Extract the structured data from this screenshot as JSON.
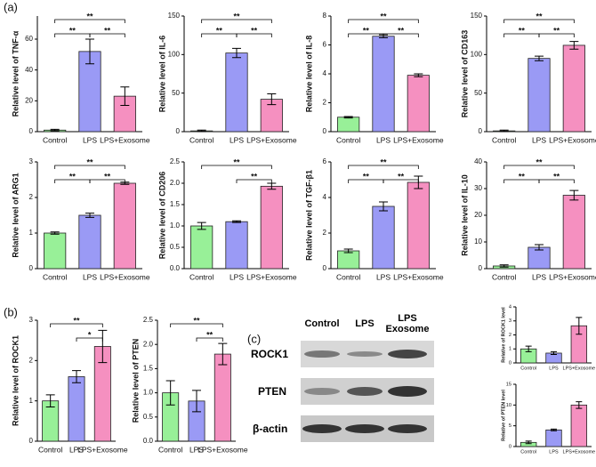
{
  "panel_labels": [
    "(a)",
    "(b)",
    "(c)"
  ],
  "blot": {
    "columns": [
      "Control",
      "LPS",
      "LPS Exosome"
    ],
    "rows": [
      "ROCK1",
      "PTEN",
      "β-actin"
    ]
  },
  "chart_data": [
    {
      "type": "bar",
      "ylabel": "Relative level of TNF-α",
      "categories": [
        "Control",
        "LPS",
        "LPS+Exosome"
      ],
      "values": [
        1,
        52,
        23
      ],
      "errors": [
        0.5,
        8,
        6
      ],
      "colors": [
        "#98f098",
        "#9a9af5",
        "#f590c0"
      ],
      "ylim": [
        0,
        75
      ],
      "yticks": [
        0,
        20,
        40,
        60
      ],
      "significance": [
        {
          "groups": [
            "Control",
            "LPS"
          ],
          "label": "**"
        },
        {
          "groups": [
            "LPS",
            "LPS+Exosome"
          ],
          "label": "**"
        },
        {
          "groups": [
            "Control",
            "LPS+Exosome"
          ],
          "label": "**"
        }
      ]
    },
    {
      "type": "bar",
      "ylabel": "Relative level of IL-6",
      "categories": [
        "Control",
        "LPS",
        "LPS+Exosome"
      ],
      "values": [
        1,
        102,
        42
      ],
      "errors": [
        1,
        6,
        7
      ],
      "colors": [
        "#98f098",
        "#9a9af5",
        "#f590c0"
      ],
      "ylim": [
        0,
        150
      ],
      "yticks": [
        0,
        50,
        100,
        150
      ],
      "significance": [
        {
          "groups": [
            "Control",
            "LPS"
          ],
          "label": "**"
        },
        {
          "groups": [
            "LPS",
            "LPS+Exosome"
          ],
          "label": "**"
        },
        {
          "groups": [
            "Control",
            "LPS+Exosome"
          ],
          "label": "**"
        }
      ]
    },
    {
      "type": "bar",
      "ylabel": "Relative level of IL-8",
      "categories": [
        "Control",
        "LPS",
        "LPS+Exosome"
      ],
      "values": [
        1,
        6.6,
        3.9
      ],
      "errors": [
        0.05,
        0.1,
        0.1
      ],
      "colors": [
        "#98f098",
        "#9a9af5",
        "#f590c0"
      ],
      "ylim": [
        0,
        8
      ],
      "yticks": [
        0,
        2,
        4,
        6,
        8
      ],
      "significance": [
        {
          "groups": [
            "Control",
            "LPS"
          ],
          "label": "**"
        },
        {
          "groups": [
            "LPS",
            "LPS+Exosome"
          ],
          "label": "**"
        },
        {
          "groups": [
            "Control",
            "LPS+Exosome"
          ],
          "label": "**"
        }
      ]
    },
    {
      "type": "bar",
      "ylabel": "Relative level of CD163",
      "categories": [
        "Control",
        "LPS",
        "LPS+Exosome"
      ],
      "values": [
        1,
        95,
        112
      ],
      "errors": [
        1,
        3,
        5
      ],
      "colors": [
        "#98f098",
        "#9a9af5",
        "#f590c0"
      ],
      "ylim": [
        0,
        150
      ],
      "yticks": [
        0,
        50,
        100,
        150
      ],
      "significance": [
        {
          "groups": [
            "Control",
            "LPS"
          ],
          "label": "**"
        },
        {
          "groups": [
            "LPS",
            "LPS+Exosome"
          ],
          "label": "**"
        },
        {
          "groups": [
            "Control",
            "LPS+Exosome"
          ],
          "label": "**"
        }
      ]
    },
    {
      "type": "bar",
      "ylabel": "Relative level of ARG1",
      "categories": [
        "Control",
        "LPS",
        "LPS+Exosome"
      ],
      "values": [
        1.0,
        1.5,
        2.4
      ],
      "errors": [
        0.03,
        0.06,
        0.03
      ],
      "colors": [
        "#98f098",
        "#9a9af5",
        "#f590c0"
      ],
      "ylim": [
        0,
        3
      ],
      "yticks": [
        0,
        1,
        2,
        3
      ],
      "significance": [
        {
          "groups": [
            "Control",
            "LPS"
          ],
          "label": "**"
        },
        {
          "groups": [
            "LPS",
            "LPS+Exosome"
          ],
          "label": "**"
        },
        {
          "groups": [
            "Control",
            "LPS+Exosome"
          ],
          "label": "**"
        }
      ]
    },
    {
      "type": "bar",
      "ylabel": "Relative level of CD206",
      "categories": [
        "Control",
        "LPS",
        "LPS+Exosome"
      ],
      "values": [
        1.0,
        1.1,
        1.93
      ],
      "errors": [
        0.08,
        0.02,
        0.07
      ],
      "colors": [
        "#98f098",
        "#9a9af5",
        "#f590c0"
      ],
      "ylim": [
        0,
        2.5
      ],
      "yticks": [
        {
          "value": 0,
          "label": "0.0"
        },
        0.5,
        {
          "value": 1,
          "label": "1.0"
        },
        1.5,
        {
          "value": 2,
          "label": "2.0"
        },
        2.5
      ],
      "significance": [
        {
          "groups": [
            "LPS",
            "LPS+Exosome"
          ],
          "label": "**"
        },
        {
          "groups": [
            "Control",
            "LPS+Exosome"
          ],
          "label": "**"
        }
      ]
    },
    {
      "type": "bar",
      "ylabel": "Relative level of TGF-β1",
      "categories": [
        "Control",
        "LPS",
        "LPS+Exosome"
      ],
      "values": [
        1,
        3.5,
        4.85
      ],
      "errors": [
        0.1,
        0.25,
        0.35
      ],
      "colors": [
        "#98f098",
        "#9a9af5",
        "#f590c0"
      ],
      "ylim": [
        0,
        6
      ],
      "yticks": [
        0,
        2,
        4,
        6
      ],
      "significance": [
        {
          "groups": [
            "Control",
            "LPS"
          ],
          "label": "**"
        },
        {
          "groups": [
            "LPS",
            "LPS+Exosome"
          ],
          "label": "**"
        },
        {
          "groups": [
            "Control",
            "LPS+Exosome"
          ],
          "label": "**"
        }
      ]
    },
    {
      "type": "bar",
      "ylabel": "Relative level of IL-10",
      "categories": [
        "Control",
        "LPS",
        "LPS+Exosome"
      ],
      "values": [
        1,
        8,
        27.5
      ],
      "errors": [
        0.4,
        1,
        1.8
      ],
      "colors": [
        "#98f098",
        "#9a9af5",
        "#f590c0"
      ],
      "ylim": [
        0,
        40
      ],
      "yticks": [
        0,
        10,
        20,
        30,
        40
      ],
      "significance": [
        {
          "groups": [
            "Control",
            "LPS"
          ],
          "label": "**"
        },
        {
          "groups": [
            "LPS",
            "LPS+Exosome"
          ],
          "label": "**"
        },
        {
          "groups": [
            "Control",
            "LPS+Exosome"
          ],
          "label": "**"
        }
      ]
    },
    {
      "type": "bar",
      "ylabel": "Relative level of ROCK1",
      "categories": [
        "Control",
        "LPS",
        "LPS+Exosome"
      ],
      "values": [
        1.0,
        1.6,
        2.35
      ],
      "errors": [
        0.15,
        0.15,
        0.4
      ],
      "colors": [
        "#98f098",
        "#9a9af5",
        "#f590c0"
      ],
      "ylim": [
        0,
        3
      ],
      "yticks": [
        0,
        1,
        2,
        3
      ],
      "significance": [
        {
          "groups": [
            "LPS",
            "LPS+Exosome"
          ],
          "label": "*"
        },
        {
          "groups": [
            "Control",
            "LPS+Exosome"
          ],
          "label": "**"
        }
      ]
    },
    {
      "type": "bar",
      "ylabel": "Relative level of PTEN",
      "categories": [
        "Control",
        "LPS",
        "LPS+Exosome"
      ],
      "values": [
        1.0,
        0.83,
        1.8
      ],
      "errors": [
        0.25,
        0.22,
        0.22
      ],
      "colors": [
        "#98f098",
        "#9a9af5",
        "#f590c0"
      ],
      "ylim": [
        0,
        2.5
      ],
      "yticks": [
        {
          "value": 0,
          "label": "0.0"
        },
        0.5,
        {
          "value": 1,
          "label": "1.0"
        },
        1.5,
        {
          "value": 2,
          "label": "2.0"
        },
        2.5
      ],
      "significance": [
        {
          "groups": [
            "LPS",
            "LPS+Exosome"
          ],
          "label": "**"
        },
        {
          "groups": [
            "Control",
            "LPS+Exosome"
          ],
          "label": "**"
        }
      ]
    },
    {
      "type": "bar",
      "ylabel": "Relative of ROCK1 level",
      "categories": [
        "Control",
        "LPS",
        "LPS+Exosome"
      ],
      "values": [
        1.0,
        0.7,
        2.65
      ],
      "errors": [
        0.2,
        0.1,
        0.6
      ],
      "colors": [
        "#98f098",
        "#9a9af5",
        "#f590c0"
      ],
      "ylim": [
        0,
        4
      ],
      "yticks": [
        0,
        1,
        2,
        3,
        4
      ]
    },
    {
      "type": "bar",
      "ylabel": "Relative of PTEN level",
      "categories": [
        "Control",
        "LPS",
        "LPS+Exosome"
      ],
      "values": [
        1,
        4,
        10
      ],
      "errors": [
        0.3,
        0.2,
        0.8
      ],
      "colors": [
        "#98f098",
        "#9a9af5",
        "#f590c0"
      ],
      "ylim": [
        0,
        15
      ],
      "yticks": [
        0,
        5,
        10,
        15
      ]
    }
  ]
}
